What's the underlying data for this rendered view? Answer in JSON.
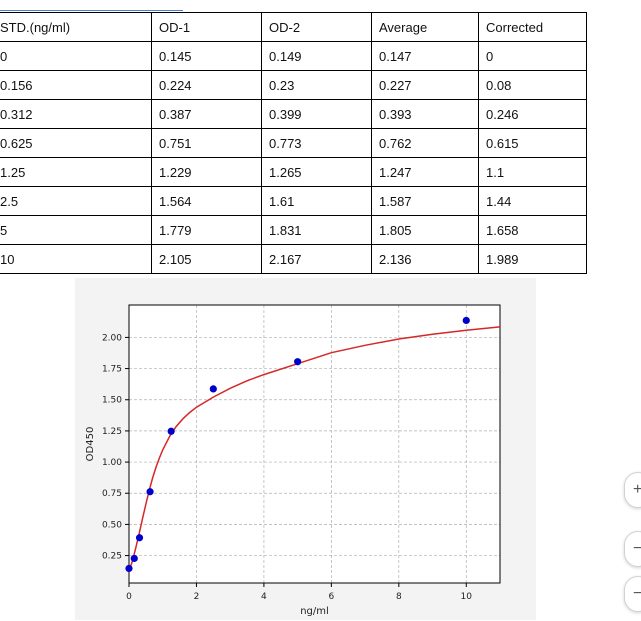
{
  "table": {
    "headers": [
      "STD.(ng/ml)",
      "OD-1",
      "OD-2",
      "Average",
      "Corrected"
    ],
    "rows": [
      [
        "0",
        "0.145",
        "0.149",
        "0.147",
        "0"
      ],
      [
        "0.156",
        "0.224",
        "0.23",
        "0.227",
        "0.08"
      ],
      [
        "0.312",
        "0.387",
        "0.399",
        "0.393",
        "0.246"
      ],
      [
        "0.625",
        "0.751",
        "0.773",
        "0.762",
        "0.615"
      ],
      [
        "1.25",
        "1.229",
        "1.265",
        "1.247",
        "1.1"
      ],
      [
        "2.5",
        "1.564",
        "1.61",
        "1.587",
        "1.44"
      ],
      [
        "5",
        "1.779",
        "1.831",
        "1.805",
        "1.658"
      ],
      [
        "10",
        "2.105",
        "2.167",
        "2.136",
        "1.989"
      ]
    ]
  },
  "chart_data": {
    "type": "scatter",
    "xlabel": "ng/ml",
    "ylabel": "OD450",
    "xlim": [
      0,
      11
    ],
    "ylim": [
      0.03,
      2.26
    ],
    "x_ticks": [
      0,
      2,
      4,
      6,
      8,
      10
    ],
    "x_tick_labels": [
      "0",
      "2",
      "4",
      "6",
      "8",
      "10"
    ],
    "y_ticks": [
      0.25,
      0.5,
      0.75,
      1.0,
      1.25,
      1.5,
      1.75,
      2.0
    ],
    "y_tick_labels": [
      "0.25",
      "0.50",
      "0.75",
      "1.00",
      "1.25",
      "1.50",
      "1.75",
      "2.00"
    ],
    "grid": true,
    "points": {
      "x": [
        0,
        0.156,
        0.312,
        0.625,
        1.25,
        2.5,
        5,
        10
      ],
      "y": [
        0.147,
        0.227,
        0.393,
        0.762,
        1.247,
        1.587,
        1.805,
        2.136
      ],
      "color": "#0000cc"
    },
    "fit_curve": {
      "x": [
        0,
        0.1,
        0.2,
        0.3,
        0.4,
        0.5,
        0.6,
        0.7,
        0.8,
        0.9,
        1.0,
        1.2,
        1.4,
        1.6,
        1.8,
        2.0,
        2.5,
        3.0,
        3.5,
        4.0,
        5.0,
        6.0,
        7.0,
        8.0,
        9.0,
        10.0,
        11.0
      ],
      "y": [
        0.128,
        0.206,
        0.309,
        0.425,
        0.546,
        0.664,
        0.773,
        0.872,
        0.958,
        1.033,
        1.098,
        1.204,
        1.285,
        1.348,
        1.398,
        1.44,
        1.521,
        1.592,
        1.652,
        1.702,
        1.789,
        1.877,
        1.937,
        1.987,
        2.025,
        2.057,
        2.084
      ],
      "color": "#d62728"
    }
  },
  "colors": {
    "panel_bg": "#f3f3f3",
    "grid": "#b0b0b0",
    "table_rule": "#4a86c5"
  },
  "side_buttons": [
    {
      "icon": "zoom-in-icon",
      "label": "+"
    },
    {
      "icon": "zoom-out-icon",
      "label": "−"
    },
    {
      "icon": "fit-icon",
      "label": "−"
    }
  ]
}
